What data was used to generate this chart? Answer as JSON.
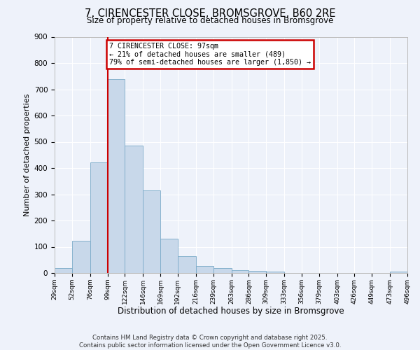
{
  "title": "7, CIRENCESTER CLOSE, BROMSGROVE, B60 2RE",
  "subtitle": "Size of property relative to detached houses in Bromsgrove",
  "xlabel": "Distribution of detached houses by size in Bromsgrove",
  "ylabel": "Number of detached properties",
  "bar_color": "#c8d8ea",
  "bar_edge_color": "#7aaac8",
  "background_color": "#eef2fa",
  "grid_color": "#ffffff",
  "vline_x": 99,
  "vline_color": "#cc0000",
  "bin_edges": [
    29,
    52,
    76,
    99,
    122,
    146,
    169,
    192,
    216,
    239,
    263,
    286,
    309,
    333,
    356,
    379,
    403,
    426,
    449,
    473,
    496
  ],
  "bar_heights": [
    20,
    122,
    422,
    740,
    485,
    315,
    130,
    65,
    28,
    20,
    10,
    7,
    5,
    0,
    0,
    0,
    0,
    0,
    0,
    5
  ],
  "tick_labels": [
    "29sqm",
    "52sqm",
    "76sqm",
    "99sqm",
    "122sqm",
    "146sqm",
    "169sqm",
    "192sqm",
    "216sqm",
    "239sqm",
    "263sqm",
    "286sqm",
    "309sqm",
    "333sqm",
    "356sqm",
    "379sqm",
    "403sqm",
    "426sqm",
    "449sqm",
    "473sqm",
    "496sqm"
  ],
  "annotation_title": "7 CIRENCESTER CLOSE: 97sqm",
  "annotation_line1": "← 21% of detached houses are smaller (489)",
  "annotation_line2": "79% of semi-detached houses are larger (1,850) →",
  "annotation_box_color": "#ffffff",
  "annotation_edge_color": "#cc0000",
  "ylim": [
    0,
    900
  ],
  "yticks": [
    0,
    100,
    200,
    300,
    400,
    500,
    600,
    700,
    800,
    900
  ],
  "footnote1": "Contains HM Land Registry data © Crown copyright and database right 2025.",
  "footnote2": "Contains public sector information licensed under the Open Government Licence v3.0."
}
